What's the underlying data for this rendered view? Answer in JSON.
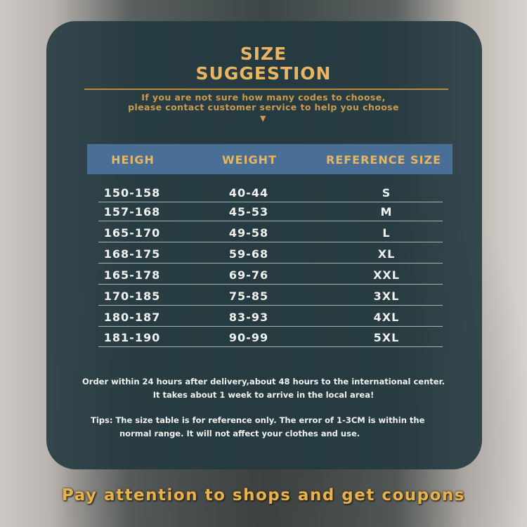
{
  "title_line1": "SIZE",
  "title_line2": "SUGGESTION",
  "subtitle_line1": "If you are not sure how many codes to choose,",
  "subtitle_line2": "please contact customer service to help you choose",
  "arrow_glyph": "▼",
  "table": {
    "headers": [
      "HEIGH",
      "WEIGHT",
      "REFERENCE SIZE"
    ],
    "rows": [
      [
        "150-158",
        "40-44",
        "S"
      ],
      [
        "157-168",
        "45-53",
        "M"
      ],
      [
        "165-170",
        "49-58",
        "L"
      ],
      [
        "168-175",
        "59-68",
        "XL"
      ],
      [
        "165-178",
        "69-76",
        "XXL"
      ],
      [
        "170-185",
        "75-85",
        "3XL"
      ],
      [
        "180-187",
        "83-93",
        "4XL"
      ],
      [
        "181-190",
        "90-99",
        "5XL"
      ]
    ]
  },
  "notice_line1": "Order within 24 hours after delivery,about 48 hours to the international center.",
  "notice_line2": "It takes about 1 week to arrive in the local area!",
  "tips_line1": "Tips:  The size table is for reference only. The error of 1-3CM is within the",
  "tips_line2": "normal range. It will not affect your clothes and use.",
  "footer": "Pay attention to shops and get coupons",
  "colors": {
    "gold": "#e9b560",
    "header_bar": "#4a6f96",
    "panel": "#233a40"
  }
}
